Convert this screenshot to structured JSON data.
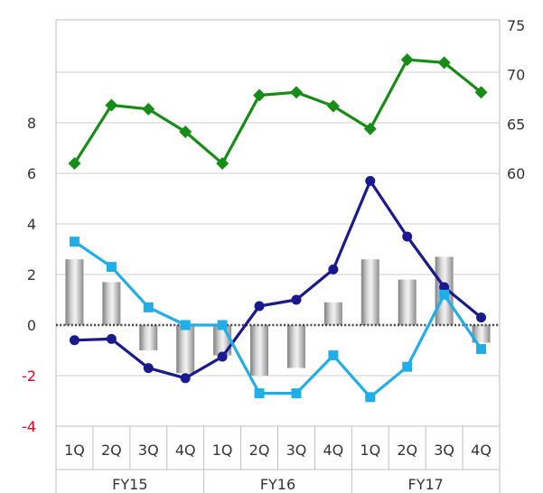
{
  "chart_data": {
    "type": "bar+line",
    "categories": [
      "1Q",
      "2Q",
      "3Q",
      "4Q",
      "1Q",
      "2Q",
      "3Q",
      "4Q",
      "1Q",
      "2Q",
      "3Q",
      "4Q"
    ],
    "groups": [
      {
        "label": "FY15",
        "span": 4
      },
      {
        "label": "FY16",
        "span": 4
      },
      {
        "label": "FY17",
        "span": 4
      }
    ],
    "left_axis": {
      "ylim": [
        -4,
        12
      ],
      "ticks": [
        {
          "value": 8,
          "label": "8",
          "color": "#333333"
        },
        {
          "value": 6,
          "label": "6",
          "color": "#333333"
        },
        {
          "value": 4,
          "label": "4",
          "color": "#333333"
        },
        {
          "value": 2,
          "label": "2",
          "color": "#333333"
        },
        {
          "value": 0,
          "label": "0",
          "color": "#333333"
        },
        {
          "value": -2,
          "label": "-2",
          "color": "#e8001c"
        },
        {
          "value": -4,
          "label": "-4",
          "color": "#e8001c"
        }
      ]
    },
    "right_axis": {
      "ylim": [
        50,
        75
      ],
      "ticks": [
        {
          "value": 75,
          "label": "75"
        },
        {
          "value": 70,
          "label": "70"
        },
        {
          "value": 65,
          "label": "65"
        },
        {
          "value": 60,
          "label": "60"
        }
      ]
    },
    "gridlines_left": [
      -4,
      -2,
      2,
      4,
      6,
      8,
      10
    ],
    "zero_line": "dotted",
    "bars": {
      "axis": "left",
      "color": "#a6a6a6",
      "values": [
        2.6,
        1.7,
        -1.0,
        -1.9,
        -1.2,
        -2.0,
        -1.7,
        0.9,
        2.6,
        1.8,
        2.7,
        -0.7
      ]
    },
    "series": [
      {
        "axis": "right",
        "color": "#178c17",
        "marker": "diamond",
        "values": [
          61.0,
          66.9,
          66.5,
          64.2,
          61.0,
          67.9,
          68.2,
          66.8,
          64.5,
          71.5,
          71.2,
          68.2
        ]
      },
      {
        "axis": "left",
        "color": "#1a1a8f",
        "marker": "circle",
        "values": [
          -0.6,
          -0.55,
          -1.7,
          -2.1,
          -1.25,
          0.75,
          1.0,
          2.2,
          5.7,
          3.5,
          1.5,
          0.3
        ]
      },
      {
        "axis": "left",
        "color": "#21aee8",
        "marker": "square",
        "values": [
          3.3,
          2.3,
          0.7,
          0.0,
          0.0,
          -2.7,
          -2.7,
          -1.2,
          -2.85,
          -1.65,
          1.2,
          -0.95
        ]
      }
    ]
  }
}
